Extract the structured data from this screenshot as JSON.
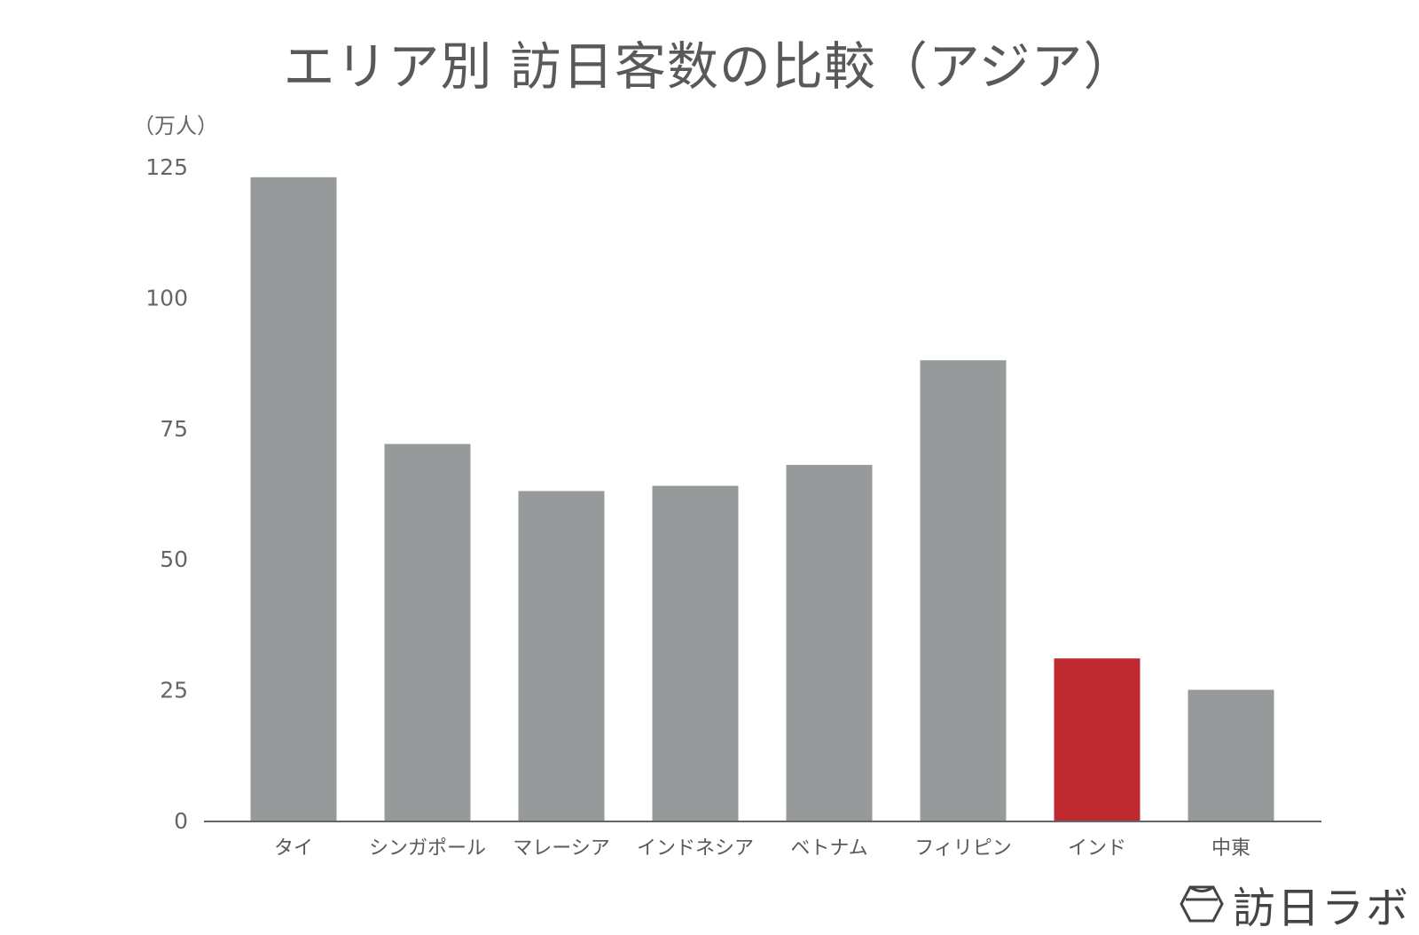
{
  "chart_data": {
    "type": "bar",
    "title": "エリア別 訪日客数の比較（アジア）",
    "ylabel": "（万人）",
    "xlabel": "",
    "categories": [
      "タイ",
      "シンガポール",
      "マレーシア",
      "インドネシア",
      "ベトナム",
      "フィリピン",
      "インド",
      "中東"
    ],
    "values": [
      123,
      72,
      63,
      64,
      68,
      88,
      31,
      25
    ],
    "ylim": [
      0,
      125
    ],
    "yticks": [
      0,
      25,
      50,
      75,
      100,
      125
    ],
    "bar_color": "#979a9a",
    "highlight_index": 6,
    "highlight_color": "#be2a30",
    "grid": false,
    "legend": "none"
  },
  "watermark": {
    "text": "訪日ラボ",
    "icon": "hexagon-logo-icon"
  },
  "colors": {
    "text": "#595959",
    "axis": "#666666"
  }
}
